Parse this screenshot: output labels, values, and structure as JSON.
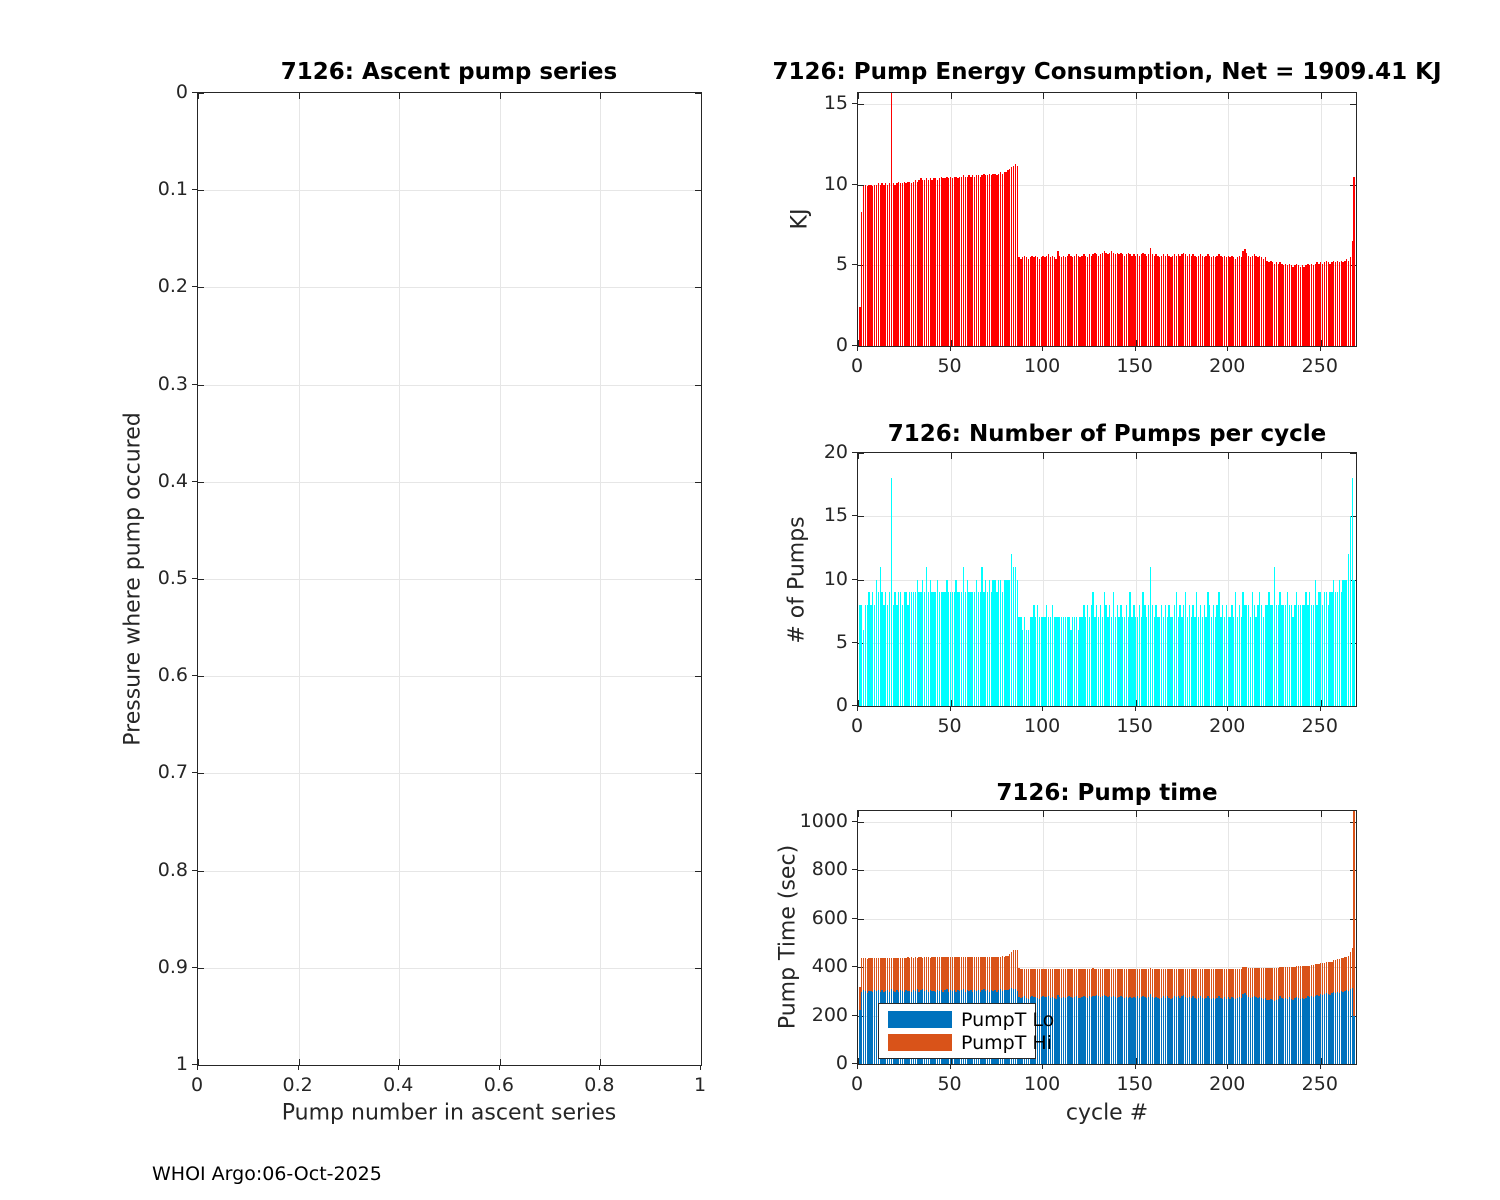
{
  "figure": {
    "footer": "WHOI Argo:06-Oct-2025",
    "colors": {
      "red": "#ff0000",
      "cyan": "#00ffff",
      "blue": "#0072bd",
      "orange": "#d95319",
      "grid": "#e6e6e6",
      "axis": "#262626"
    }
  },
  "chart_data": [
    {
      "id": "ascent",
      "type": "bar",
      "title": "7126: Ascent pump series",
      "xlabel": "Pump number in ascent series",
      "ylabel": "Pressure where pump occured",
      "xlim": [
        0,
        1
      ],
      "ylim": [
        0,
        1
      ],
      "y_reversed": true,
      "grid": true,
      "xticks": [
        0,
        0.2,
        0.4,
        0.6,
        0.8,
        1
      ],
      "yticks": [
        0,
        0.1,
        0.2,
        0.3,
        0.4,
        0.5,
        0.6,
        0.7,
        0.8,
        0.9,
        1
      ],
      "values": [],
      "note": "empty axes - no data plotted"
    },
    {
      "id": "energy",
      "type": "bar",
      "title": "7126: Pump Energy Consumption,  Net = 1909.41 KJ",
      "net_kj": 1909.41,
      "ylabel": "KJ",
      "color": "#ff0000",
      "xlim": [
        0,
        269
      ],
      "ylim": [
        0,
        15.7
      ],
      "grid": true,
      "xticks": [
        0,
        50,
        100,
        150,
        200,
        250
      ],
      "yticks": [
        0,
        5,
        10,
        15
      ],
      "values": [
        2.4,
        8.3,
        9.9,
        10,
        9.9,
        10,
        10,
        9.9,
        10,
        10,
        10.1,
        10,
        10.1,
        10,
        10.1,
        10,
        10.1,
        16.5,
        10.1,
        10,
        10.1,
        10.2,
        10.1,
        10.1,
        10.2,
        10.1,
        10.2,
        10.2,
        10.1,
        10.2,
        10.3,
        10.2,
        10.3,
        10.4,
        10.3,
        10.3,
        10.4,
        10.3,
        10.4,
        10.3,
        10.4,
        10.4,
        10.3,
        10.4,
        10.5,
        10.4,
        10.4,
        10.5,
        10.4,
        10.5,
        10.4,
        10.5,
        10.5,
        10.4,
        10.5,
        10.5,
        10.6,
        10.5,
        10.5,
        10.6,
        10.5,
        10.6,
        10.5,
        10.6,
        10.6,
        10.5,
        10.6,
        10.7,
        10.6,
        10.6,
        10.7,
        10.6,
        10.7,
        10.7,
        10.6,
        10.7,
        10.8,
        10.7,
        10.8,
        10.8,
        10.9,
        11,
        11.1,
        11.2,
        11.3,
        11.2,
        5.5,
        5.4,
        5.5,
        5.6,
        5.5,
        5.4,
        5.5,
        5.6,
        5.5,
        5.6,
        5.5,
        5.4,
        5.5,
        5.6,
        5.5,
        5.6,
        5.7,
        5.5,
        5.6,
        5.5,
        5.4,
        5.9,
        5.6,
        5.5,
        5.6,
        5.5,
        5.6,
        5.7,
        5.6,
        5.5,
        5.6,
        5.7,
        5.6,
        5.5,
        5.6,
        5.7,
        5.6,
        5.5,
        5.7,
        5.6,
        5.7,
        5.8,
        5.7,
        5.6,
        5.7,
        5.8,
        5.9,
        5.8,
        5.7,
        5.8,
        5.9,
        5.8,
        5.7,
        5.8,
        5.7,
        5.8,
        5.7,
        5.6,
        5.7,
        5.8,
        5.7,
        5.6,
        5.7,
        5.6,
        5.7,
        5.6,
        5.7,
        5.8,
        5.7,
        5.6,
        5.7,
        6.1,
        5.7,
        5.6,
        5.7,
        5.6,
        5.5,
        5.6,
        5.7,
        5.6,
        5.7,
        5.6,
        5.5,
        5.6,
        5.7,
        5.6,
        5.7,
        5.6,
        5.7,
        5.8,
        5.7,
        5.6,
        5.7,
        5.6,
        5.7,
        5.6,
        5.5,
        5.6,
        5.7,
        5.6,
        5.5,
        5.6,
        5.7,
        5.6,
        5.5,
        5.6,
        5.5,
        5.6,
        5.7,
        5.6,
        5.5,
        5.6,
        5.5,
        5.6,
        5.5,
        5.6,
        5.5,
        5.4,
        5.5,
        5.6,
        5.5,
        5.9,
        6,
        5.8,
        5.6,
        5.5,
        5.6,
        5.7,
        5.6,
        5.5,
        5.6,
        5.5,
        5.4,
        5.5,
        5.3,
        5.2,
        5.3,
        5.2,
        5.1,
        5.2,
        5.1,
        5.2,
        5.1,
        5,
        5.1,
        5,
        5.1,
        5,
        4.9,
        5,
        5.1,
        5,
        4.9,
        5,
        4.9,
        5,
        5.1,
        5,
        5.1,
        5,
        5.1,
        5.2,
        5.1,
        5.2,
        5.1,
        5.2,
        5.3,
        5.2,
        5.1,
        5.2,
        5.3,
        5.2,
        5.3,
        5.2,
        5.3,
        5.2,
        5.3,
        5.4,
        5.3,
        5.5,
        6.5,
        10.5
      ]
    },
    {
      "id": "pumps",
      "type": "bar",
      "title": "7126: Number of Pumps per cycle",
      "ylabel": "# of Pumps",
      "color": "#00ffff",
      "xlim": [
        0,
        269
      ],
      "ylim": [
        0,
        20
      ],
      "grid": true,
      "xticks": [
        0,
        50,
        100,
        150,
        200,
        250
      ],
      "yticks": [
        0,
        5,
        10,
        15,
        20
      ],
      "values": [
        8,
        8,
        6,
        8,
        8,
        9,
        8,
        9,
        8,
        10,
        9,
        11,
        9,
        8,
        9,
        8,
        9,
        18,
        8,
        9,
        8,
        9,
        9,
        8,
        9,
        9,
        8,
        9,
        9,
        9,
        9,
        10,
        9,
        9,
        10,
        9,
        11,
        9,
        10,
        9,
        9,
        9,
        10,
        9,
        9,
        9,
        9,
        10,
        9,
        9,
        9,
        9,
        10,
        9,
        9,
        9,
        11,
        9,
        10,
        9,
        9,
        9,
        9,
        10,
        9,
        9,
        11,
        9,
        10,
        9,
        10,
        9,
        10,
        10,
        9,
        10,
        10,
        9,
        10,
        10,
        10,
        10,
        12,
        11,
        11,
        10,
        7,
        7,
        6,
        7,
        6,
        6,
        7,
        7,
        8,
        7,
        8,
        7,
        7,
        7,
        7,
        8,
        7,
        7,
        8,
        7,
        7,
        7,
        7,
        7,
        7,
        7,
        7,
        7,
        6,
        7,
        7,
        7,
        6,
        7,
        7,
        8,
        7,
        8,
        7,
        8,
        9,
        7,
        8,
        7,
        8,
        7,
        9,
        8,
        7,
        8,
        7,
        9,
        7,
        8,
        7,
        8,
        7,
        7,
        8,
        7,
        9,
        7,
        8,
        7,
        7,
        8,
        7,
        9,
        8,
        7,
        8,
        11,
        8,
        7,
        8,
        7,
        7,
        8,
        7,
        8,
        7,
        8,
        7,
        7,
        8,
        9,
        7,
        8,
        7,
        8,
        9,
        7,
        8,
        7,
        8,
        7,
        9,
        7,
        8,
        7,
        8,
        7,
        9,
        8,
        7,
        8,
        7,
        8,
        9,
        7,
        8,
        7,
        8,
        7,
        7,
        8,
        7,
        9,
        7,
        8,
        7,
        9,
        8,
        8,
        8,
        7,
        9,
        8,
        7,
        8,
        9,
        8,
        7,
        8,
        8,
        9,
        8,
        8,
        11,
        8,
        8,
        9,
        8,
        8,
        8,
        9,
        8,
        8,
        7,
        8,
        9,
        8,
        8,
        8,
        8,
        9,
        8,
        9,
        8,
        8,
        10,
        8,
        9,
        9,
        8,
        9,
        9,
        8,
        9,
        9,
        10,
        9,
        9,
        10,
        9,
        10,
        10,
        10,
        12,
        15,
        18,
        10
      ]
    },
    {
      "id": "pumptime",
      "type": "stacked-bar",
      "title": "7126: Pump time",
      "xlabel": "cycle #",
      "ylabel": "Pump Time (sec)",
      "xlim": [
        0,
        269
      ],
      "ylim": [
        0,
        1045
      ],
      "grid": true,
      "xticks": [
        0,
        50,
        100,
        150,
        200,
        250
      ],
      "yticks": [
        0,
        200,
        400,
        600,
        800,
        1000
      ],
      "legend": [
        {
          "label": "PumpT Lo",
          "color": "#0072bd"
        },
        {
          "label": "PumpT Hi",
          "color": "#d95319"
        }
      ],
      "series": [
        {
          "name": "PumpT Lo",
          "color": "#0072bd",
          "values": [
            225,
            298,
            305,
            300,
            295,
            302,
            300,
            296,
            304,
            300,
            306,
            298,
            305,
            296,
            300,
            305,
            298,
            310,
            300,
            296,
            304,
            299,
            306,
            300,
            297,
            305,
            300,
            302,
            298,
            305,
            300,
            308,
            298,
            304,
            310,
            300,
            306,
            298,
            305,
            300,
            303,
            298,
            306,
            300,
            305,
            297,
            304,
            308,
            298,
            305,
            300,
            305,
            298,
            304,
            300,
            306,
            310,
            298,
            305,
            300,
            304,
            298,
            305,
            300,
            306,
            298,
            304,
            310,
            300,
            305,
            298,
            306,
            300,
            305,
            298,
            306,
            310,
            300,
            306,
            304,
            305,
            308,
            312,
            310,
            308,
            300,
            278,
            272,
            275,
            280,
            274,
            270,
            276,
            280,
            275,
            278,
            272,
            270,
            275,
            280,
            276,
            278,
            282,
            274,
            278,
            272,
            270,
            285,
            278,
            274,
            276,
            272,
            278,
            280,
            276,
            272,
            276,
            280,
            274,
            272,
            278,
            280,
            275,
            272,
            280,
            276,
            280,
            282,
            285,
            280,
            276,
            280,
            284,
            280,
            276,
            280,
            276,
            280,
            276,
            272,
            278,
            280,
            276,
            272,
            278,
            274,
            278,
            272,
            278,
            274,
            280,
            274,
            278,
            282,
            278,
            272,
            278,
            290,
            278,
            274,
            278,
            272,
            270,
            274,
            280,
            274,
            280,
            274,
            270,
            274,
            280,
            276,
            280,
            274,
            280,
            284,
            278,
            272,
            278,
            272,
            280,
            274,
            270,
            274,
            280,
            274,
            270,
            274,
            280,
            274,
            270,
            274,
            270,
            274,
            280,
            274,
            270,
            276,
            270,
            276,
            270,
            276,
            272,
            268,
            272,
            278,
            272,
            288,
            292,
            284,
            276,
            272,
            276,
            280,
            276,
            272,
            276,
            272,
            268,
            272,
            266,
            264,
            268,
            264,
            262,
            266,
            270,
            280,
            274,
            270,
            274,
            270,
            276,
            270,
            266,
            272,
            278,
            272,
            268,
            274,
            270,
            274,
            280,
            276,
            280,
            276,
            282,
            286,
            282,
            288,
            284,
            288,
            294,
            290,
            286,
            292,
            296,
            292,
            298,
            294,
            300,
            296,
            302,
            306,
            302,
            310,
            315,
            200
          ]
        },
        {
          "name": "PumpT Hi",
          "color": "#d95319",
          "values": [
            95,
            138,
            132,
            136,
            140,
            134,
            138,
            140,
            132,
            138,
            132,
            140,
            133,
            142,
            138,
            132,
            140,
            128,
            138,
            142,
            134,
            139,
            132,
            138,
            141,
            133,
            140,
            136,
            142,
            133,
            140,
            130,
            142,
            136,
            128,
            140,
            134,
            142,
            133,
            140,
            139,
            144,
            136,
            142,
            137,
            145,
            138,
            134,
            144,
            137,
            142,
            137,
            144,
            138,
            142,
            136,
            132,
            144,
            137,
            142,
            138,
            144,
            137,
            142,
            136,
            144,
            138,
            132,
            142,
            137,
            146,
            138,
            144,
            139,
            146,
            138,
            134,
            146,
            138,
            142,
            140,
            145,
            150,
            162,
            165,
            172,
            118,
            120,
            116,
            112,
            118,
            122,
            116,
            112,
            118,
            114,
            120,
            122,
            117,
            112,
            116,
            114,
            110,
            118,
            114,
            120,
            122,
            108,
            114,
            118,
            116,
            120,
            114,
            112,
            116,
            120,
            116,
            112,
            118,
            120,
            114,
            112,
            117,
            120,
            112,
            116,
            115,
            112,
            108,
            114,
            118,
            114,
            110,
            114,
            118,
            114,
            118,
            114,
            118,
            122,
            116,
            114,
            118,
            122,
            116,
            120,
            116,
            122,
            116,
            120,
            114,
            120,
            116,
            112,
            116,
            122,
            116,
            105,
            116,
            120,
            116,
            122,
            124,
            120,
            114,
            120,
            114,
            120,
            124,
            120,
            114,
            118,
            114,
            120,
            114,
            110,
            116,
            122,
            116,
            122,
            114,
            120,
            124,
            120,
            114,
            120,
            124,
            120,
            114,
            120,
            124,
            120,
            124,
            120,
            114,
            120,
            124,
            118,
            124,
            118,
            124,
            118,
            122,
            126,
            122,
            116,
            122,
            112,
            108,
            116,
            122,
            126,
            122,
            118,
            122,
            126,
            122,
            126,
            130,
            126,
            132,
            134,
            130,
            134,
            136,
            132,
            128,
            122,
            128,
            132,
            128,
            132,
            126,
            132,
            136,
            130,
            126,
            132,
            136,
            130,
            134,
            130,
            126,
            130,
            128,
            132,
            130,
            128,
            132,
            128,
            132,
            130,
            126,
            130,
            134,
            130,
            134,
            138,
            134,
            140,
            136,
            142,
            140,
            138,
            146,
            152,
            165,
            860
          ]
        }
      ]
    }
  ]
}
